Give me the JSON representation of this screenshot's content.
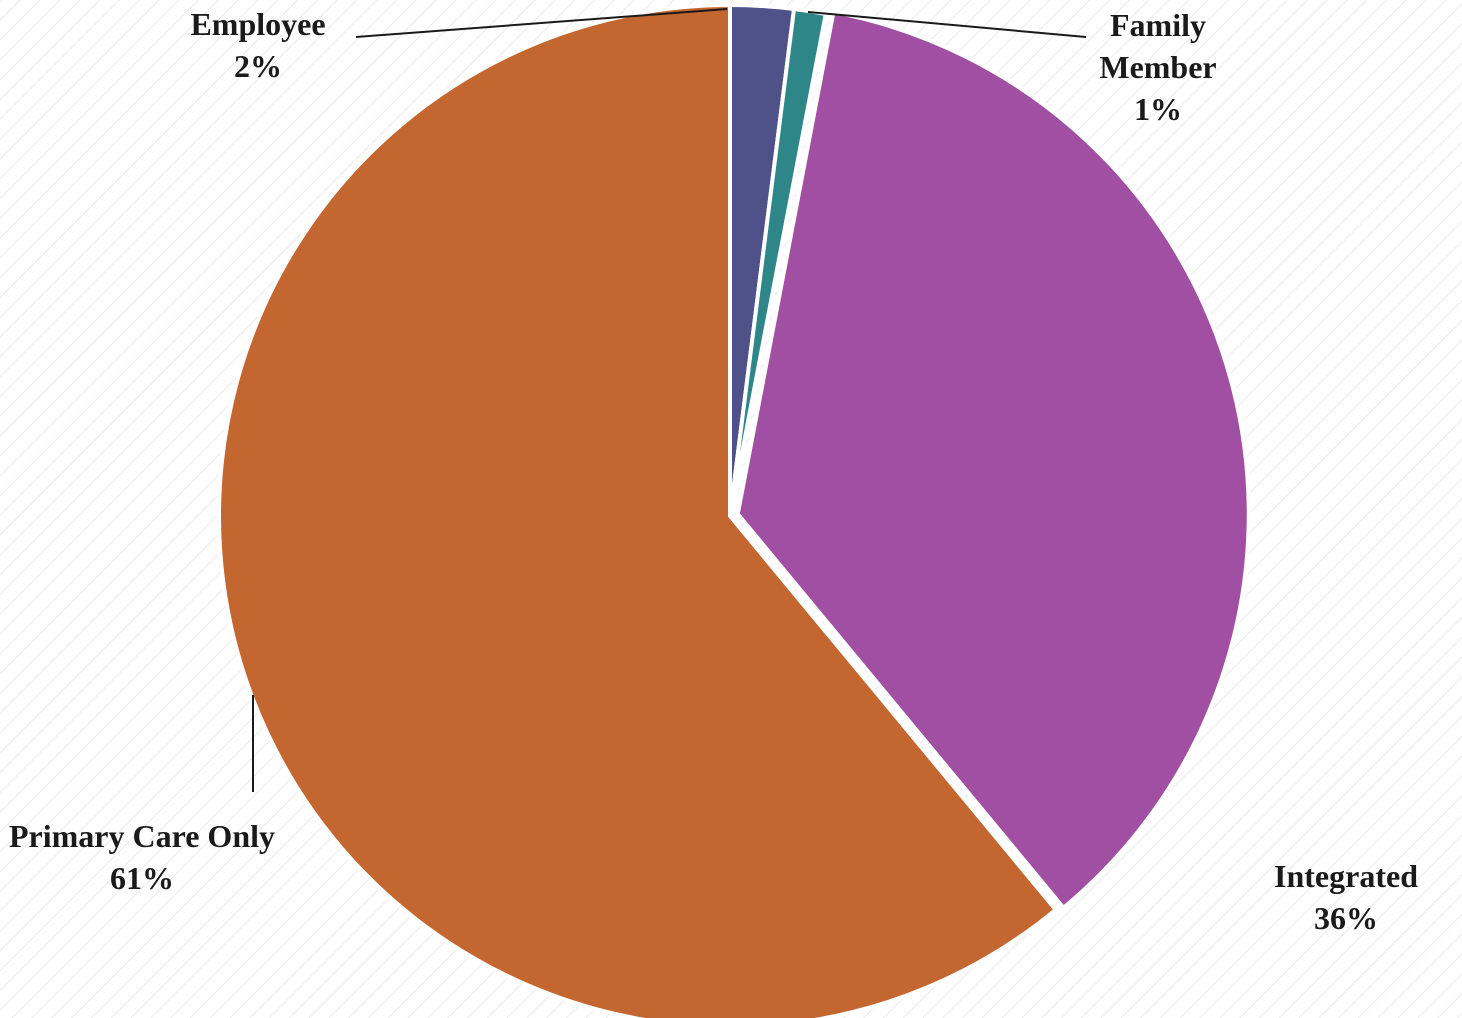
{
  "chart_data": {
    "type": "pie",
    "categories": [
      "Employee",
      "Family Member",
      "Integrated",
      "Primary Care Only"
    ],
    "values": [
      2,
      1,
      36,
      61
    ],
    "value_labels": [
      "2%",
      "1%",
      "36%",
      "61%"
    ],
    "colors": [
      "#4f5289",
      "#2f8688",
      "#a04fa2",
      "#c4662f"
    ]
  }
}
